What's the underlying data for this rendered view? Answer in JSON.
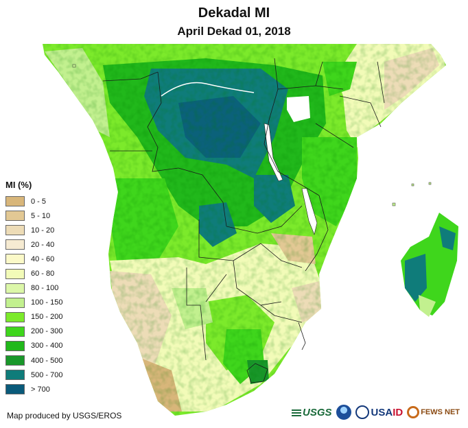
{
  "title": "Dekadal MI",
  "subtitle": "April Dekad 01, 2018",
  "legend": {
    "title": "MI (%)",
    "items": [
      {
        "label": "0 - 5",
        "color": "#d8b67a"
      },
      {
        "label": "5 - 10",
        "color": "#e2c894"
      },
      {
        "label": "10 - 20",
        "color": "#eddcb7"
      },
      {
        "label": "20 - 40",
        "color": "#f6ebd2"
      },
      {
        "label": "40 - 60",
        "color": "#fbf9c8"
      },
      {
        "label": "60 - 80",
        "color": "#f2fbb8"
      },
      {
        "label": "80 - 100",
        "color": "#dcf7a9"
      },
      {
        "label": "100 - 150",
        "color": "#c2f08f"
      },
      {
        "label": "150 - 200",
        "color": "#7cea2b"
      },
      {
        "label": "200 - 300",
        "color": "#3fd61c"
      },
      {
        "label": "300 - 400",
        "color": "#21b81b"
      },
      {
        "label": "400 - 500",
        "color": "#19972a"
      },
      {
        "label": "500 - 700",
        "color": "#0f7c7a"
      },
      {
        "label": "> 700",
        "color": "#0a5a7a"
      }
    ]
  },
  "credit": "Map produced by USGS/EROS",
  "logos": {
    "usgs": "USGS",
    "usaid_left": "USA",
    "usaid_right": "ID",
    "fews": "FEWS NET"
  }
}
